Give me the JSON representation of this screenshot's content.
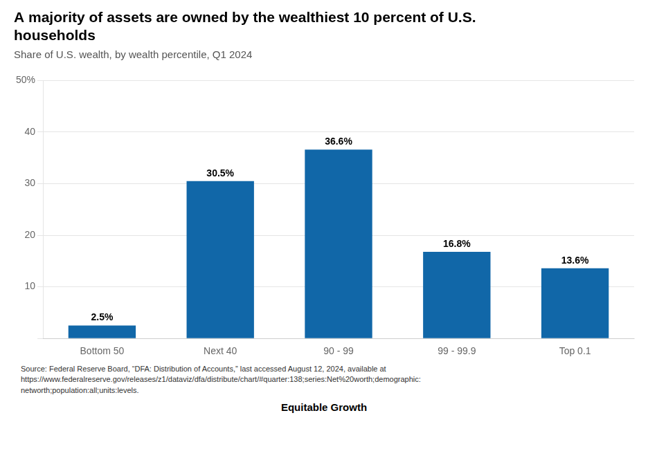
{
  "chart_data": {
    "type": "bar",
    "title": "A majority of assets are owned by the wealthiest 10 percent of U.S.\nhouseholds",
    "subtitle": "Share of U.S. wealth, by wealth percentile, Q1 2024",
    "categories": [
      "Bottom 50",
      "Next 40",
      "90 - 99",
      "99 - 99.9",
      "Top 0.1"
    ],
    "values": [
      2.5,
      30.5,
      36.6,
      16.8,
      13.6
    ],
    "value_labels": [
      "2.5%",
      "30.5%",
      "36.6%",
      "16.8%",
      "13.6%"
    ],
    "data_labels": true,
    "color": "#1167a8",
    "ylim": [
      0,
      50
    ],
    "yticks": [
      {
        "value": 0,
        "label": ""
      },
      10,
      20,
      30,
      40,
      {
        "value": 50,
        "label": "50%"
      }
    ],
    "grid": true,
    "source": "Source: Federal Reserve Board, “DFA: Distribution of Accounts,” last accessed August 12, 2024, available at\nhttps://www.federalreserve.gov/releases/z1/dataviz/dfa/distribute/chart/#quarter:138;series:Net%20worth;demographic:\nnetworth;population:all;units:levels.",
    "annotations": [
      "Equitable Growth"
    ]
  }
}
